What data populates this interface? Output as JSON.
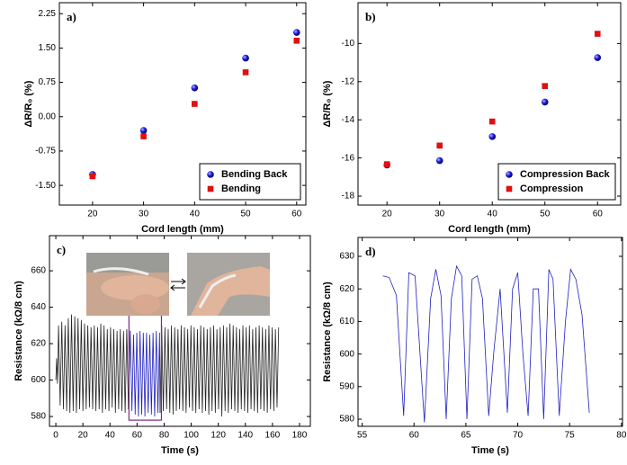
{
  "chart_data": [
    {
      "type": "scatter",
      "panel": "a)",
      "x_label": "Cord length (mm)",
      "y_label": "ΔR/R₀ (%)",
      "x": [
        20,
        30,
        40,
        50,
        60
      ],
      "series": [
        {
          "name": "Bending Back",
          "color": "#1a1ad6",
          "marker": "circle",
          "values": [
            -1.26,
            -0.3,
            0.63,
            1.28,
            1.84
          ]
        },
        {
          "name": "Bending",
          "color": "#e01010",
          "marker": "square",
          "values": [
            -1.3,
            -0.43,
            0.28,
            0.97,
            1.66
          ]
        }
      ],
      "xlim": [
        13.5,
        61.8
      ],
      "ylim": [
        -1.93,
        2.49
      ],
      "xticks": [
        20,
        30,
        40,
        50,
        60
      ],
      "yticks": [
        {
          "value": -1.5,
          "label": "-1.50"
        },
        {
          "value": -0.75,
          "label": "-0.75"
        },
        {
          "value": 0,
          "label": "0.00"
        },
        {
          "value": 0.75,
          "label": "0.75"
        },
        {
          "value": 1.5,
          "label": "1.50"
        },
        {
          "value": 2.25,
          "label": "2.25"
        }
      ],
      "legend": "bottom-right"
    },
    {
      "type": "scatter",
      "panel": "b)",
      "x_label": "Cord length (mm)",
      "y_label": "ΔR/R₀ (%)",
      "x": [
        20,
        30,
        40,
        50,
        60
      ],
      "series": [
        {
          "name": "Compression Back",
          "color": "#1a1ad6",
          "marker": "circle",
          "values": [
            -16.37,
            -16.14,
            -14.88,
            -13.07,
            -10.74
          ]
        },
        {
          "name": "Compression",
          "color": "#e01010",
          "marker": "square",
          "values": [
            -16.33,
            -15.35,
            -14.09,
            -12.23,
            -9.49
          ]
        }
      ],
      "xlim": [
        14.5,
        64.4
      ],
      "ylim": [
        -18.47,
        -7.86
      ],
      "xticks": [
        20,
        30,
        40,
        50,
        60
      ],
      "yticks": [
        -18,
        -16,
        -14,
        -12,
        -10
      ],
      "legend": "bottom-right"
    },
    {
      "type": "line",
      "panel": "c)",
      "x_label": "Time (s)",
      "y_label": "Resistance (kΩ/8 cm)",
      "series": [
        {
          "color": "#222222",
          "x": [
            0,
            0.6,
            1.2,
            2,
            3.2,
            4.4,
            5.6,
            6.8,
            8,
            9.2,
            10.4,
            11.6,
            12.8,
            14,
            15.2,
            16.4,
            17.6,
            18.8,
            20,
            21.2,
            22.4,
            23.6,
            24.8,
            26,
            27.2,
            28.4,
            29.6,
            30.8,
            32,
            33.2,
            34.4,
            35.6,
            36.8,
            38,
            39.2,
            40.4,
            41.6,
            42.8,
            44,
            45.2,
            46.4,
            47.6,
            48.8,
            50,
            51.2,
            52.4,
            53.6,
            55
          ],
          "values": [
            600,
            612,
            598,
            630,
            586,
            632,
            584,
            630,
            583,
            634,
            582,
            636,
            583,
            635,
            582,
            634,
            584,
            633,
            583,
            631,
            584,
            630,
            585,
            629,
            584,
            630,
            583,
            629,
            584,
            631,
            582,
            630,
            584,
            628,
            583,
            629,
            585,
            628,
            582,
            627,
            584,
            628,
            583,
            627,
            582,
            628,
            584,
            627
          ]
        },
        {
          "color": "#1f1fbf",
          "x": [
            55,
            56.2,
            57.4,
            58.6,
            59.8,
            61,
            62.2,
            63.4,
            64.6,
            65.8,
            67,
            68.2,
            69.4,
            70.6,
            71.8,
            73,
            74.2,
            75.4,
            76.6,
            77
          ],
          "values": [
            627,
            583,
            625,
            581,
            626,
            580,
            627,
            581,
            626,
            580,
            626,
            582,
            625,
            581,
            626,
            580,
            627,
            582,
            626,
            582
          ]
        },
        {
          "color": "#222222",
          "x": [
            77,
            78.2,
            79.4,
            80.6,
            81.8,
            83,
            84.2,
            85.4,
            86.6,
            87.8,
            89,
            90.2,
            91.4,
            92.6,
            93.8,
            95,
            96.2,
            97.4,
            98.6,
            99.8,
            101,
            102.2,
            103.4,
            104.6,
            105.8,
            107,
            108.2,
            109.4,
            110.6,
            111.8,
            113,
            114.2,
            115.4,
            116.6,
            117.8,
            119,
            120.2,
            121.4,
            122.6,
            123.8,
            125,
            126.2,
            127.4,
            128.6,
            129.8,
            131,
            132.2,
            133.4,
            134.6,
            135.8,
            137,
            138.2,
            139.4,
            140.6,
            141.8,
            143,
            144.2,
            145.4,
            146.6,
            147.8,
            149,
            150.2,
            151.4,
            152.6,
            153.8,
            155,
            156.2,
            157.4,
            158.6,
            159.8,
            161,
            162.2,
            163.4,
            164.6
          ],
          "values": [
            582,
            630,
            583,
            629,
            584,
            628,
            582,
            630,
            581,
            629,
            583,
            628,
            584,
            630,
            583,
            629,
            582,
            628,
            585,
            630,
            583,
            629,
            582,
            628,
            584,
            630,
            582,
            629,
            583,
            628,
            581,
            629,
            583,
            630,
            582,
            628,
            584,
            629,
            580,
            630,
            583,
            629,
            582,
            631,
            584,
            630,
            583,
            629,
            582,
            628,
            584,
            630,
            583,
            629,
            582,
            630,
            584,
            628,
            583,
            629,
            582,
            630,
            584,
            629,
            583,
            628,
            582,
            630,
            584,
            629,
            583,
            628,
            585,
            629
          ]
        }
      ],
      "highlight": {
        "x": [
          54,
          78
        ],
        "y": [
          578,
          644
        ],
        "color": "#7a2a8a"
      },
      "xlim": [
        -4.7,
        188
      ],
      "ylim": [
        574.6,
        679.3
      ],
      "xticks": [
        0,
        20,
        40,
        60,
        80,
        100,
        120,
        140,
        160,
        180
      ],
      "yticks": [
        580,
        600,
        620,
        640,
        660
      ]
    },
    {
      "type": "line",
      "panel": "d)",
      "x_label": "Time (s)",
      "y_label": "Resistance (kΩ/8 cm)",
      "series": [
        {
          "color": "#1f1fbf",
          "x": [
            57,
            57.6,
            58.3,
            59,
            59.5,
            60.1,
            61,
            61.6,
            62.1,
            62.6,
            63.1,
            63.6,
            64.1,
            64.6,
            65.1,
            65.6,
            66.1,
            66.6,
            67.2,
            67.7,
            68.3,
            69,
            69.5,
            70,
            70.5,
            71,
            71.5,
            72,
            72.5,
            73,
            73.4,
            74,
            74.6,
            75.1,
            75.6,
            76.2,
            76.9
          ],
          "values": [
            624,
            623.5,
            618,
            581,
            625,
            624,
            579,
            617,
            626,
            618,
            580,
            617,
            627,
            624,
            580,
            623,
            624,
            617,
            581,
            601,
            620,
            582,
            620,
            625,
            600,
            581,
            620,
            620,
            580,
            626,
            623,
            581,
            610,
            626,
            623,
            612,
            582
          ]
        }
      ],
      "xlim": [
        54.6,
        80.1
      ],
      "ylim": [
        577.8,
        635.8
      ],
      "xticks": [
        55,
        60,
        65,
        70,
        75,
        80
      ],
      "yticks": [
        580,
        590,
        600,
        610,
        620,
        630
      ]
    }
  ]
}
